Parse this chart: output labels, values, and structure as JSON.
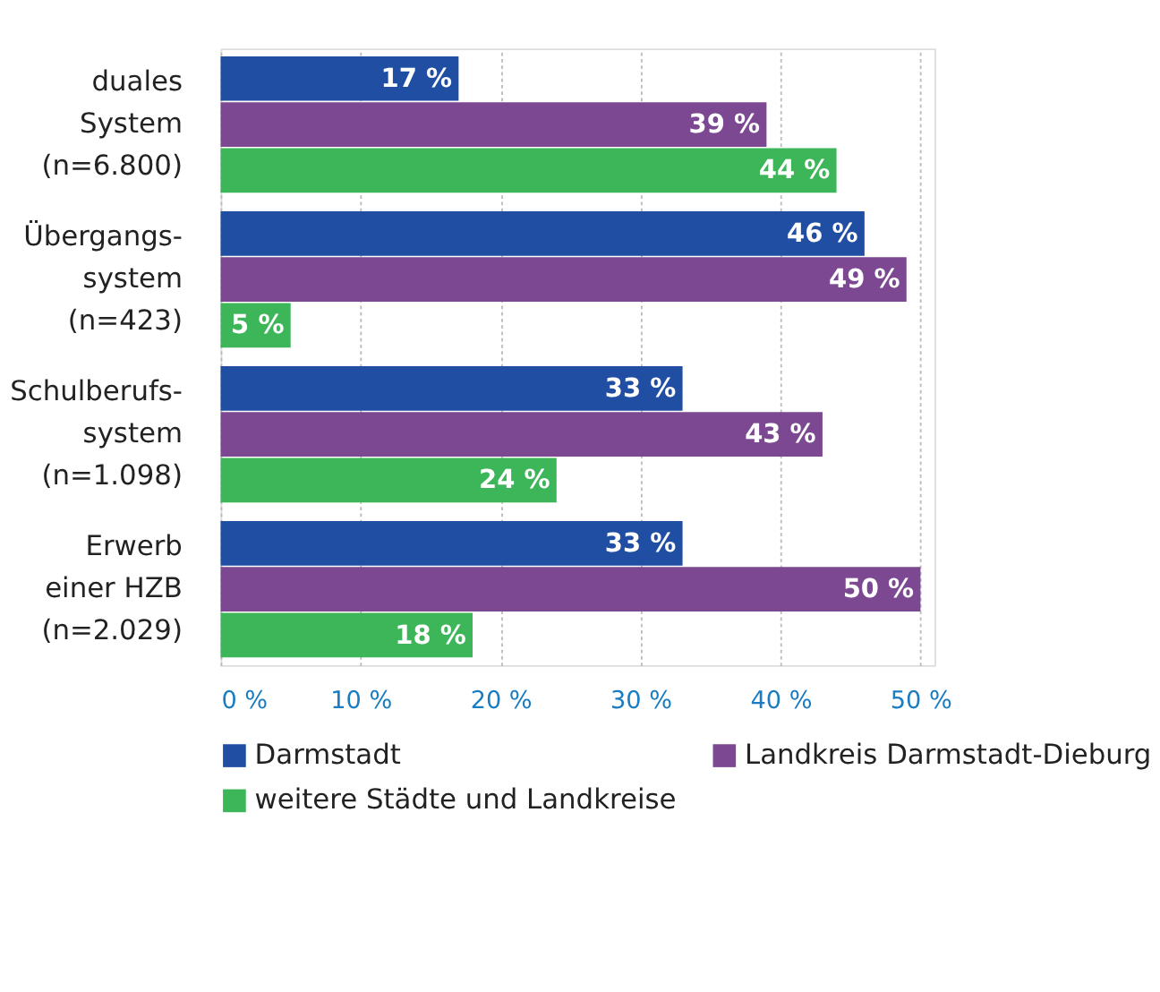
{
  "chart_data": {
    "type": "bar",
    "orientation": "horizontal",
    "categories": [
      "duales\nSystem\n(n=6.800)",
      "Übergangs-\nsystem\n(n=423)",
      "Schulberufs-\nsystem\n(n=1.098)",
      "Erwerb\neiner HZB\n(n=2.029)"
    ],
    "series": [
      {
        "name": "Darmstadt",
        "color": "#1f4ea3",
        "values": [
          17,
          46,
          33,
          33
        ],
        "value_labels": [
          "17 %",
          "46 %",
          "33 %",
          "33 %"
        ]
      },
      {
        "name": "Landkreis Darmstadt-Dieburg",
        "color": "#7d4892",
        "values": [
          39,
          49,
          43,
          50
        ],
        "value_labels": [
          "39 %",
          "49 %",
          "43 %",
          "50 %"
        ]
      },
      {
        "name": "weitere Städte und Landkreise",
        "color": "#3db559",
        "values": [
          44,
          5,
          24,
          18
        ],
        "value_labels": [
          "44 %",
          "5 %",
          "24 %",
          "18 %"
        ]
      }
    ],
    "xlim": [
      0,
      51
    ],
    "xticks": [
      {
        "value": 0,
        "label": "0 %"
      },
      {
        "value": 10,
        "label": "10 %"
      },
      {
        "value": 20,
        "label": "20 %"
      },
      {
        "value": 30,
        "label": "30 %"
      },
      {
        "value": 40,
        "label": "40 %"
      },
      {
        "value": 50,
        "label": "50 %"
      }
    ],
    "grid": "x",
    "legend": "bottom"
  }
}
